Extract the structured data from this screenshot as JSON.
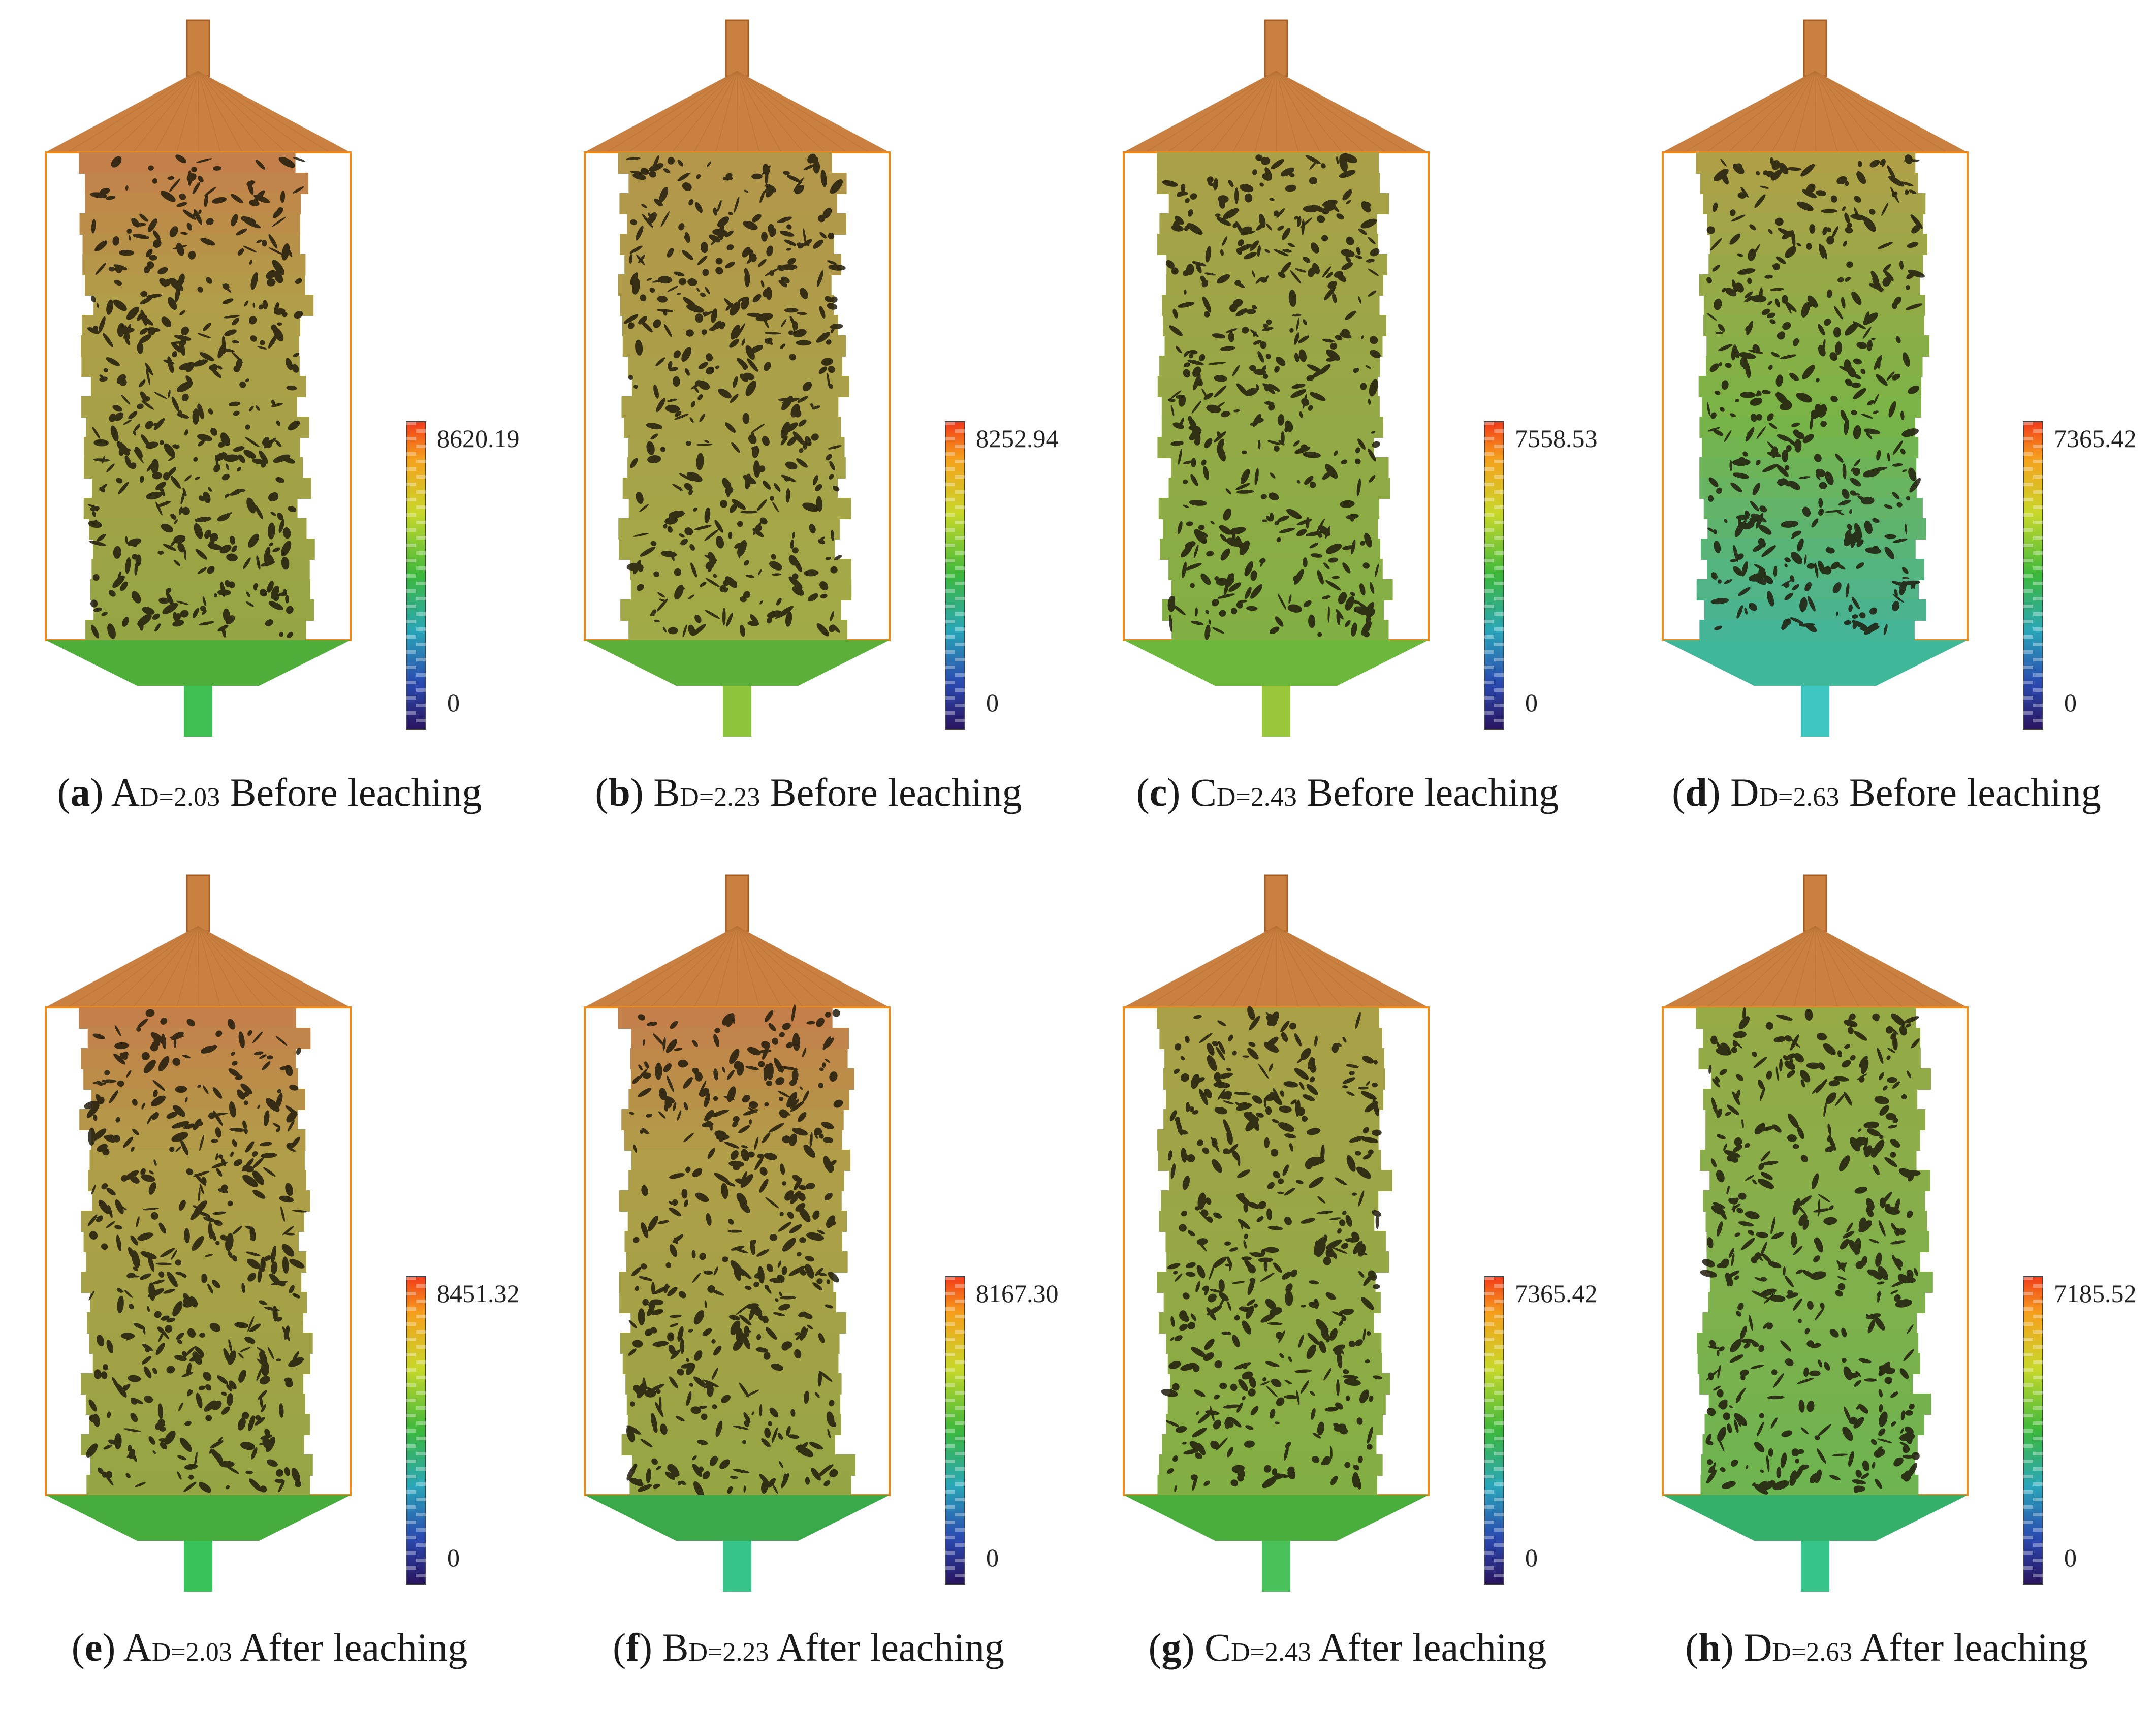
{
  "panels": [
    {
      "id": "a",
      "letter": "A",
      "d_value": "D=2.03",
      "stage": "Before leaching",
      "scale_max": "8620.19",
      "scale_min": "0",
      "palette": "warm-top",
      "base_color": "#4fae3a",
      "spout_color": "#3fbf52"
    },
    {
      "id": "b",
      "letter": "B",
      "d_value": "D=2.23",
      "stage": "Before leaching",
      "scale_max": "8252.94",
      "scale_min": "0",
      "palette": "olive",
      "base_color": "#5cb03a",
      "spout_color": "#8cc43c"
    },
    {
      "id": "c",
      "letter": "C",
      "d_value": "D=2.43",
      "stage": "Before leaching",
      "scale_max": "7558.53",
      "scale_min": "0",
      "palette": "olive-green",
      "base_color": "#6bb83a",
      "spout_color": "#9ac63c"
    },
    {
      "id": "d",
      "letter": "D",
      "d_value": "D=2.63",
      "stage": "Before leaching",
      "scale_max": "7365.42",
      "scale_min": "0",
      "palette": "green-teal",
      "base_color": "#3fb89a",
      "spout_color": "#3fc6c0"
    },
    {
      "id": "e",
      "letter": "A",
      "d_value": "D=2.03",
      "stage": "After leaching",
      "scale_max": "8451.32",
      "scale_min": "0",
      "palette": "warm-top",
      "base_color": "#46ad3c",
      "spout_color": "#38c25a"
    },
    {
      "id": "f",
      "letter": "B",
      "d_value": "D=2.23",
      "stage": "After leaching",
      "scale_max": "8167.30",
      "scale_min": "0",
      "palette": "warm-top",
      "base_color": "#3aa94a",
      "spout_color": "#36c48a"
    },
    {
      "id": "g",
      "letter": "C",
      "d_value": "D=2.43",
      "stage": "After leaching",
      "scale_max": "7365.42",
      "scale_min": "0",
      "palette": "olive-green",
      "base_color": "#4aae3c",
      "spout_color": "#4ac05a"
    },
    {
      "id": "h",
      "letter": "D",
      "d_value": "D=2.63",
      "stage": "After leaching",
      "scale_max": "7185.52",
      "scale_min": "0",
      "palette": "green",
      "base_color": "#34b06a",
      "spout_color": "#36c48a"
    }
  ],
  "colors": {
    "cap": "#c98040",
    "frame": "#f08a1a",
    "pore": "#1f1a0c"
  }
}
